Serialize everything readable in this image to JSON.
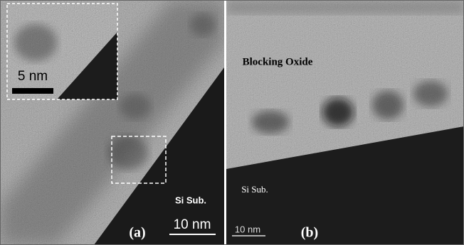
{
  "panels": [
    {
      "label": "(a)",
      "inset_scale": "5 nm",
      "region": "Si Sub.",
      "scale": "10 nm"
    },
    {
      "label": "(b)",
      "layer": "Blocking Oxide",
      "region": "Si Sub.",
      "scale": "10 nm"
    }
  ]
}
